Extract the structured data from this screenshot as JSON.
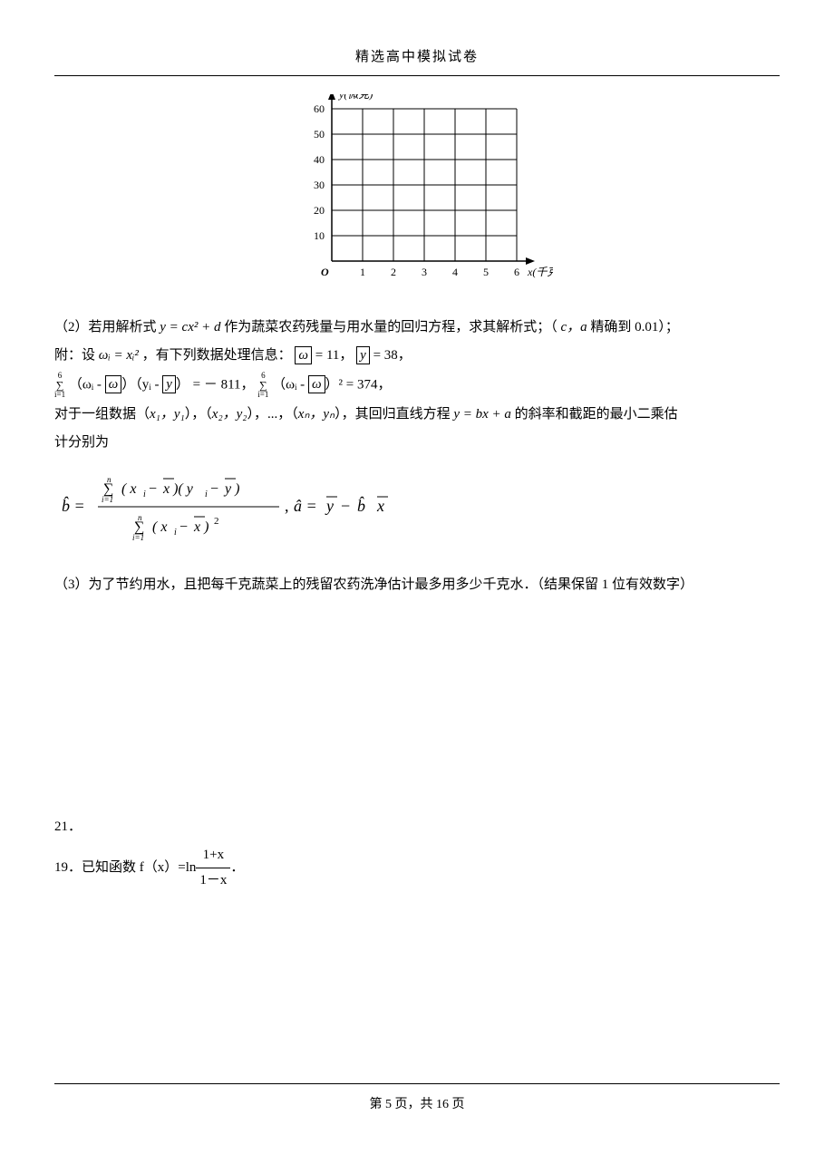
{
  "header": {
    "title": "精选高中模拟试卷"
  },
  "chart": {
    "type": "grid-axes",
    "x_label": "x(千克)",
    "y_label": "y(微克)",
    "origin_label": "O",
    "x_ticks": [
      1,
      2,
      3,
      4,
      5,
      6
    ],
    "y_ticks": [
      10,
      20,
      30,
      40,
      50,
      60
    ],
    "xlim": [
      0,
      6
    ],
    "ylim": [
      0,
      60
    ],
    "grid_color": "#000000",
    "axis_color": "#000000",
    "background_color": "#ffffff",
    "tick_fontsize": 12,
    "label_fontsize": 12
  },
  "p2_leadin": "（2）若用解析式 ",
  "p2_eq": "y = cx² + d",
  "p2_mid": " 作为蔬菜农药残量与用水量的回归方程，求其解析式；（",
  "p2_ca": "c，a",
  "p2_tail": " 精确到 0.01）；",
  "p_attach": "附：设 ",
  "omega_def": "ωᵢ = xᵢ²",
  "p_attach2": "，有下列数据处理信息：",
  "omega_bar_eq": " = 11，",
  "y_bar_eq": " = 38，",
  "sum1_n": "6",
  "sum1_i": "i=1",
  "sum1_expr_a": "（ωᵢ - ",
  "sum1_expr_b": "）（yᵢ - ",
  "sum1_expr_c": "） = － 811，",
  "sum2_expr_a": " （ωᵢ - ",
  "sum2_expr_b": "）² = 374，",
  "p_group": "对于一组数据（",
  "pair1": "x₁，y₁",
  "pair2": "x₂，y₂",
  "pair_mid": "），（",
  "pair_dots": "），...，（",
  "pairn": "xₙ，yₙ",
  "p_group_tail": "），其回归直线方程 ",
  "line_eq": "y = bx + a",
  "p_group_tail2": " 的斜率和截距的最小二乘估",
  "p_group_line2": "计分别为",
  "formula": {
    "b_hat": "b̂",
    "num": "∑ (xᵢ − x̄)(yᵢ − ȳ)",
    "den": "∑ (xᵢ − x̄)²",
    "a_hat": "â = ȳ − b̂ x̄",
    "sum_top": "n",
    "sum_bot": "i=1"
  },
  "p3": "（3）为了节约用水，且把每千克蔬菜上的残留农药洗净估计最多用多少千克水．（结果保留 1 位有效数字）",
  "q21": "21．",
  "q19_lead": "19．已知函数 f（x）=ln",
  "q19_frac_num": "1+x",
  "q19_frac_den": "1－x",
  "q19_period": "．",
  "footer": {
    "prefix": "第 ",
    "page": "5",
    "mid": " 页，共 ",
    "total": "16",
    "suffix": " 页"
  }
}
